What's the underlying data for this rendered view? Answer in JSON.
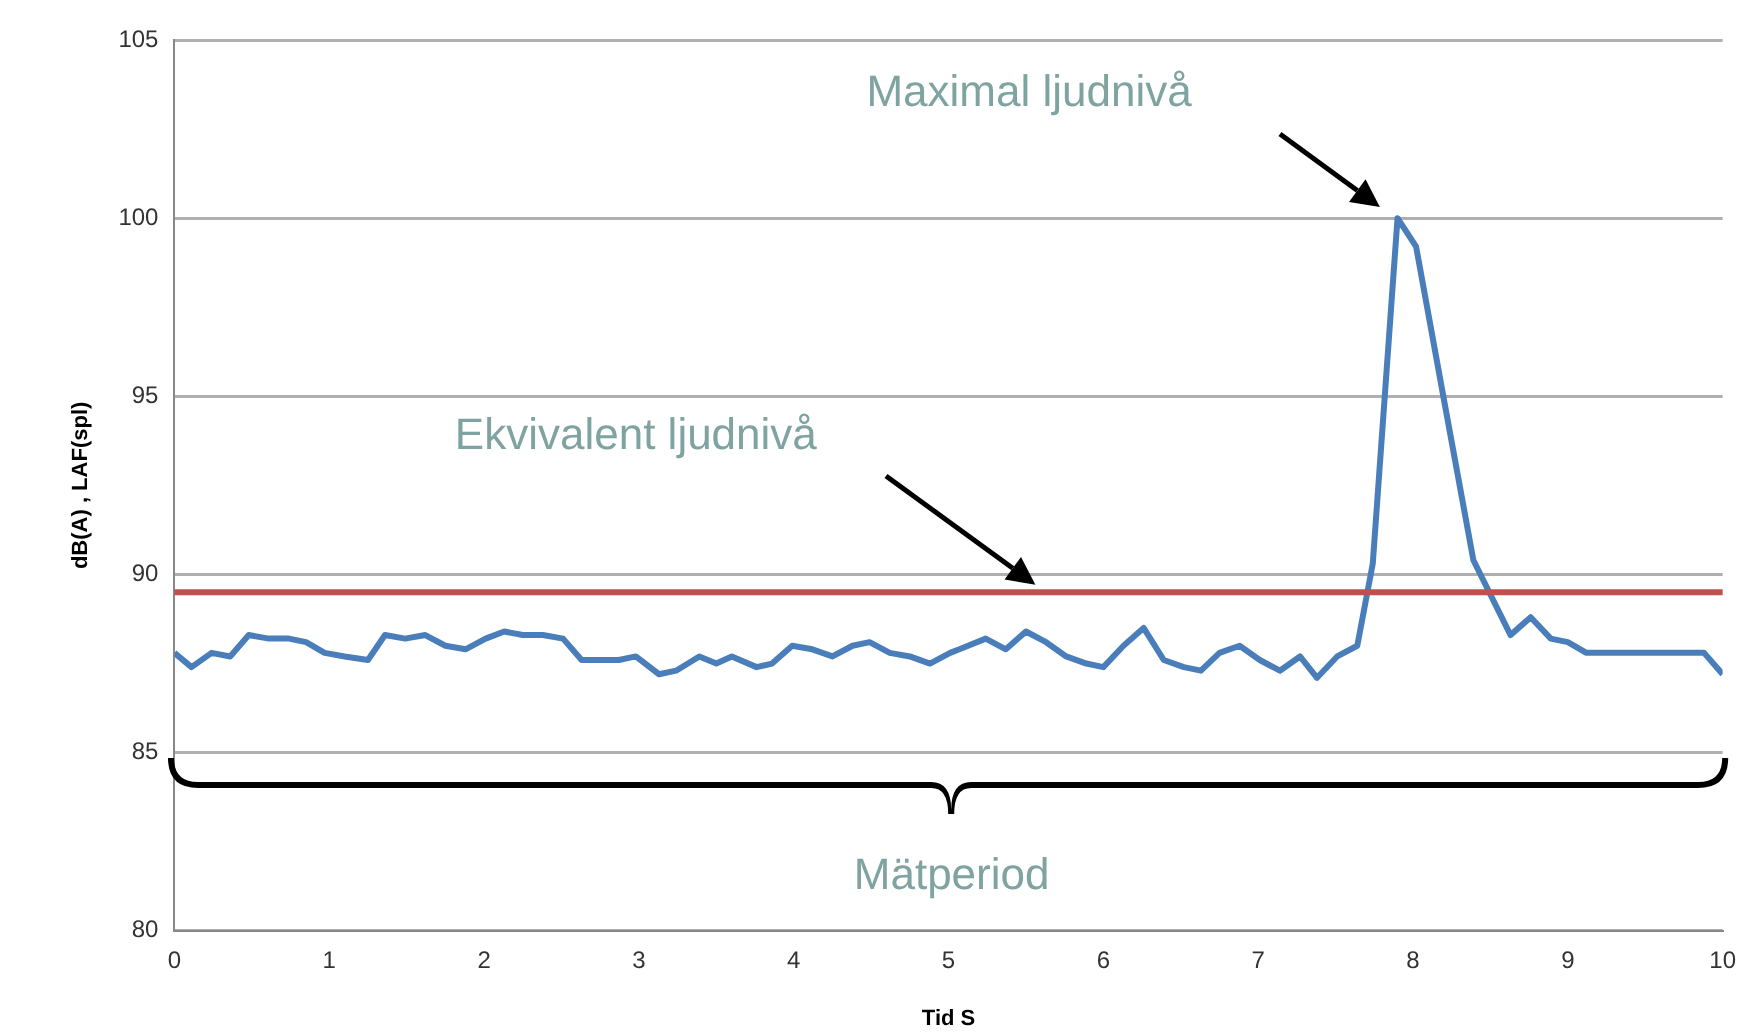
{
  "chart_data": {
    "type": "line",
    "x": [
      0,
      0.11,
      0.24,
      0.36,
      0.48,
      0.61,
      0.74,
      0.85,
      0.97,
      1.1,
      1.25,
      1.36,
      1.49,
      1.62,
      1.75,
      1.88,
      2.01,
      2.13,
      2.25,
      2.38,
      2.51,
      2.63,
      2.76,
      2.87,
      2.98,
      3.13,
      3.24,
      3.39,
      3.5,
      3.6,
      3.76,
      3.86,
      3.99,
      4.12,
      4.25,
      4.38,
      4.49,
      4.62,
      4.75,
      4.88,
      5.01,
      5.07,
      5.24,
      5.37,
      5.5,
      5.63,
      5.76,
      5.89,
      6.0,
      6.13,
      6.26,
      6.39,
      6.52,
      6.63,
      6.75,
      6.88,
      7.01,
      7.14,
      7.27,
      7.38,
      7.51,
      7.64,
      7.74,
      7.9,
      8.02,
      8.2,
      8.39,
      8.63,
      8.76,
      8.89,
      9.0,
      9.12,
      9.25,
      9.47,
      9.64,
      9.88,
      10.0
    ],
    "series": [
      {
        "color": "#4a7ebb",
        "values": [
          87.8,
          87.4,
          87.8,
          87.7,
          88.3,
          88.2,
          88.2,
          88.1,
          87.8,
          87.7,
          87.6,
          88.3,
          88.2,
          88.3,
          88.0,
          87.9,
          88.2,
          88.4,
          88.3,
          88.3,
          88.2,
          87.6,
          87.6,
          87.6,
          87.7,
          87.2,
          87.3,
          87.7,
          87.5,
          87.7,
          87.4,
          87.5,
          88.0,
          87.9,
          87.7,
          88.0,
          88.1,
          87.8,
          87.7,
          87.5,
          87.8,
          87.9,
          88.2,
          87.9,
          88.4,
          88.1,
          87.7,
          87.5,
          87.4,
          88.0,
          88.5,
          87.6,
          87.4,
          87.3,
          87.8,
          88.0,
          87.6,
          87.3,
          87.7,
          87.1,
          87.7,
          88.0,
          90.3,
          100.0,
          99.2,
          94.9,
          90.4,
          88.3,
          88.8,
          88.2,
          88.1,
          87.8,
          87.8,
          87.8,
          87.8,
          87.8,
          87.2
        ]
      }
    ],
    "xlim": [
      0,
      10
    ],
    "xticks": [
      0,
      1,
      2,
      3,
      4,
      5,
      6,
      7,
      8,
      9,
      10
    ],
    "ylim": [
      80,
      105
    ],
    "yticks": [
      80,
      85,
      90,
      95,
      100,
      105
    ],
    "xlabel": "Tid S",
    "ylabel": "dB(A) , LAF(spl)",
    "grid": "y",
    "marker": "none",
    "line_style": "solid",
    "legend": false,
    "ref_lines": [
      {
        "axis": "y",
        "value": 89.5,
        "color": "#c0504d"
      }
    ],
    "annotations": [
      "Maximal ljudnivå",
      "Ekvivalent ljudnivå",
      "Mätperiod"
    ]
  }
}
